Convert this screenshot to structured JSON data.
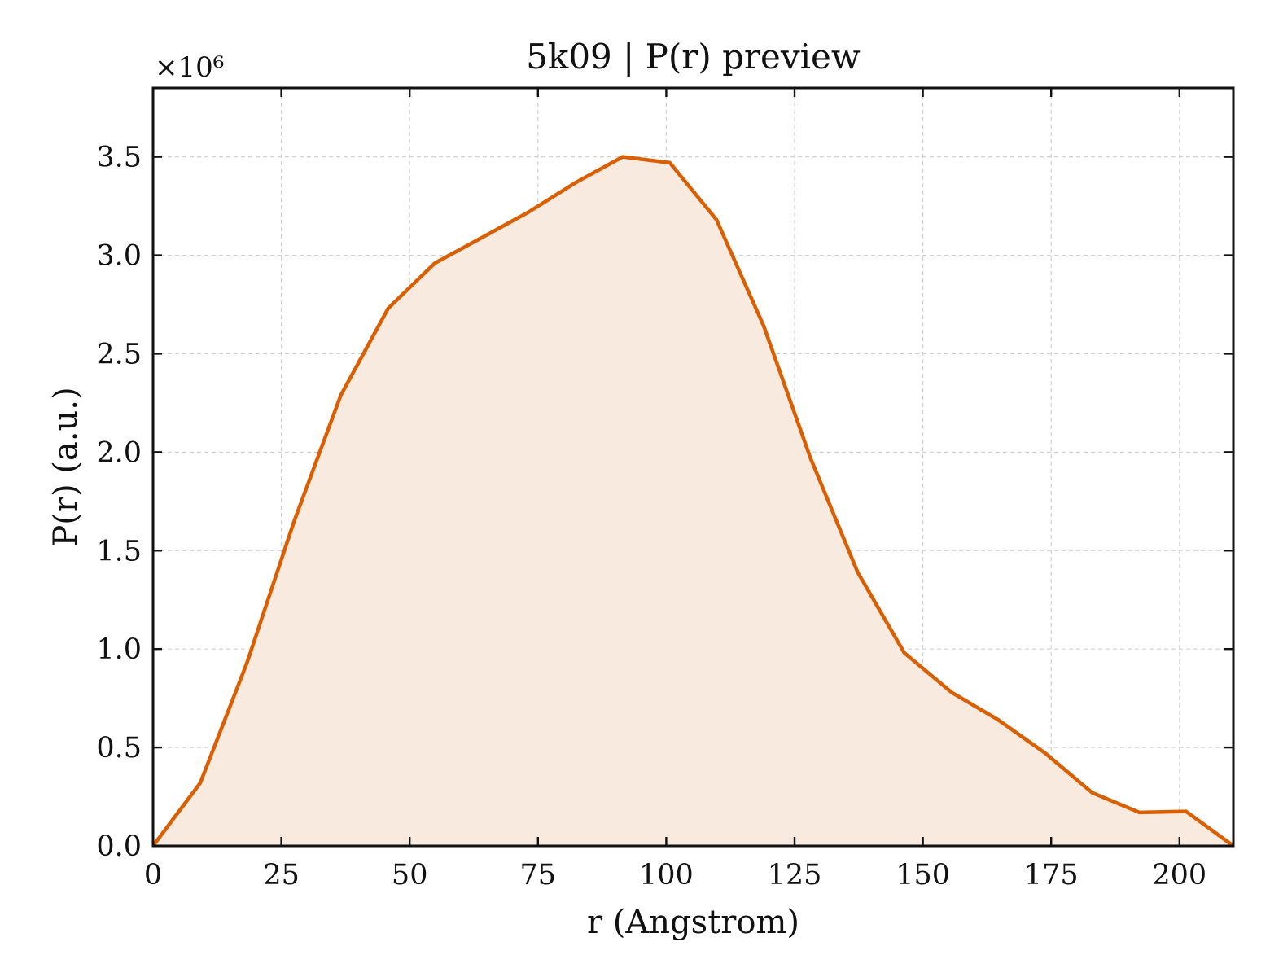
{
  "chart_data": {
    "type": "area",
    "title": "5k09 | P(r) preview",
    "xlabel": "r (Angstrom)",
    "ylabel": "P(r) (a.u.)",
    "y_scale_label": "×10⁶",
    "xlim": [
      0,
      210.5
    ],
    "ylim": [
      0,
      3.85
    ],
    "x_ticks": [
      0,
      25,
      50,
      75,
      100,
      125,
      150,
      175,
      200
    ],
    "x_tick_labels": [
      "0",
      "25",
      "50",
      "75",
      "100",
      "125",
      "150",
      "175",
      "200"
    ],
    "y_ticks": [
      0,
      0.5,
      1.0,
      1.5,
      2.0,
      2.5,
      3.0,
      3.5
    ],
    "y_tick_labels": [
      "0.0",
      "0.5",
      "1.0",
      "1.5",
      "2.0",
      "2.5",
      "3.0",
      "3.5"
    ],
    "grid": true,
    "series": [
      {
        "x": [
          0,
          9.2,
          18.3,
          27.5,
          36.6,
          45.8,
          54.9,
          64.1,
          73.2,
          82.4,
          91.5,
          100.7,
          109.8,
          119.0,
          128.1,
          137.3,
          146.4,
          155.6,
          164.7,
          173.9,
          183.0,
          192.2,
          201.3,
          210.5
        ],
        "y": [
          0,
          0.32,
          0.93,
          1.65,
          2.29,
          2.73,
          2.96,
          3.09,
          3.22,
          3.37,
          3.5,
          3.47,
          3.18,
          2.64,
          1.97,
          1.39,
          0.98,
          0.78,
          0.64,
          0.47,
          0.27,
          0.17,
          0.175,
          0
        ]
      }
    ],
    "colors": {
      "line": "#d95f02",
      "fill": "#f9eadf"
    }
  }
}
